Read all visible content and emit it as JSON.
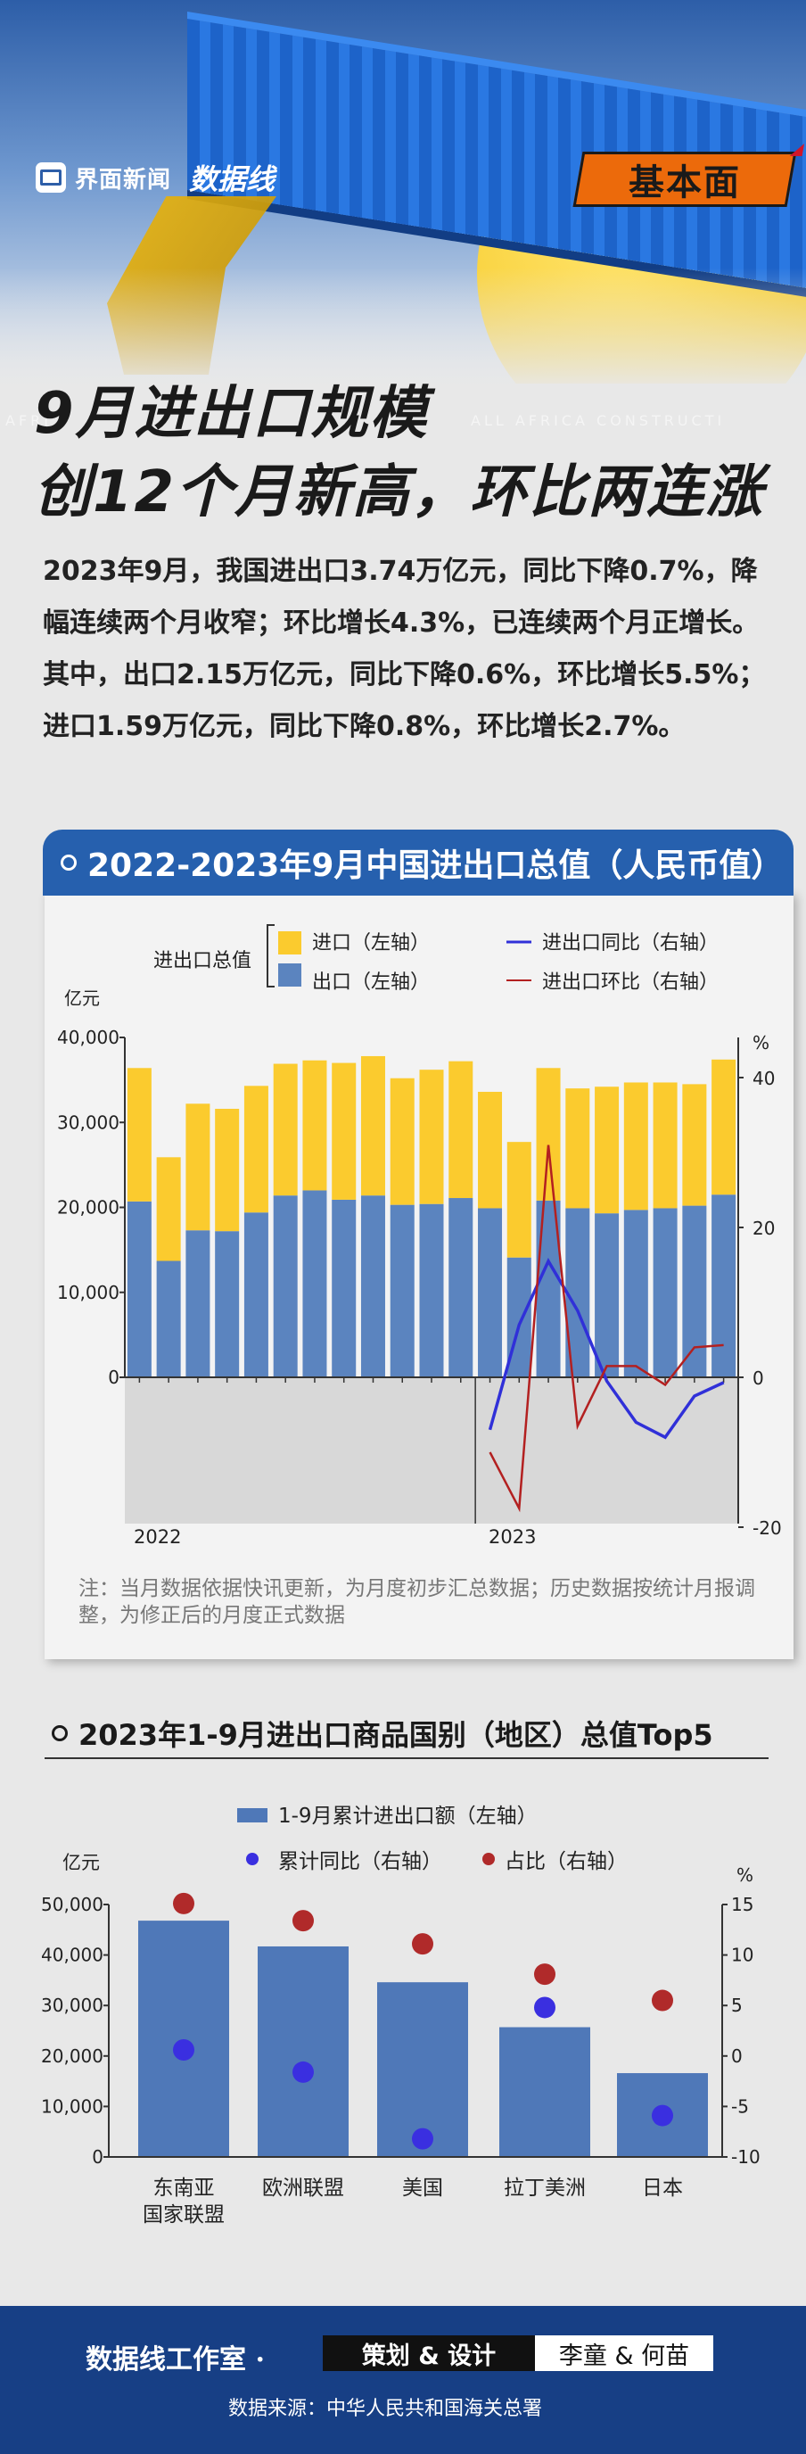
{
  "header": {
    "brand_cn": "界面新闻",
    "brand_logo": "数据线",
    "badge": "基本面",
    "watermark_left": "AFRI",
    "watermark_right": "ALL AFRICA CONSTRUCTI",
    "colors": {
      "sky": "#2d5ea8",
      "sun": "#f4c51b",
      "badge": "#ec6a0b"
    }
  },
  "title": {
    "line1": "9月进出口规模",
    "line2": "创12个月新高，环比两连涨"
  },
  "lead": "2023年9月，我国进出口3.74万亿元，同比下降0.7%，降幅连续两个月收窄；环比增长4.3%，已连续两个月正增长。其中，出口2.15万亿元，同比下降0.6%，环比增长5.5%；进口1.59万亿元，同比下降0.8%，环比增长2.7%。",
  "section1": {
    "title": "2022-2023年9月中国进出口总值（人民币值）",
    "note": "注：当月数据依据快讯更新，为月度初步汇总数据；历史数据按统计月报调整，为修正后的月度正式数据"
  },
  "section2": {
    "title": "2023年1-9月进出口商品国别（地区）总值Top5"
  },
  "footer": {
    "studio": "数据线工作室 ·",
    "plan": "策划 & 设计",
    "names": "李童 & 何苗",
    "source": "数据来源：中华人民共和国海关总署"
  },
  "chart_data": [
    {
      "type": "bar",
      "stacked": true,
      "legend": {
        "group_label": "进出口总值",
        "import": "进口（左轴）",
        "export": "出口（左轴）",
        "yoy": "进出口同比（右轴）",
        "mom": "进出口环比（右轴）"
      },
      "ylabel": "亿元",
      "y2label": "%",
      "ylim": [
        -18000,
        40000
      ],
      "y2lim": [
        -20,
        40
      ],
      "yticks": [
        "40,000",
        "30,000",
        "20,000",
        "10,000",
        "0"
      ],
      "y2ticks": [
        "40",
        "20",
        "0",
        "-20"
      ],
      "xlabels": [
        "2022",
        "2023"
      ],
      "months": [
        "2022-01",
        "2022-02",
        "2022-03",
        "2022-04",
        "2022-05",
        "2022-06",
        "2022-07",
        "2022-08",
        "2022-09",
        "2022-10",
        "2022-11",
        "2022-12",
        "2023-01",
        "2023-02",
        "2023-03",
        "2023-04",
        "2023-05",
        "2023-06",
        "2023-07",
        "2023-08",
        "2023-09"
      ],
      "series": [
        {
          "name": "出口（左轴）",
          "color": "#5b84bf",
          "values": [
            20700,
            13700,
            17300,
            17200,
            19400,
            21400,
            22000,
            20900,
            21400,
            20300,
            20400,
            21100,
            19900,
            14100,
            20800,
            19900,
            19300,
            19700,
            19900,
            20200,
            21500
          ]
        },
        {
          "name": "进口（左轴）",
          "color": "#fbcb2e",
          "values": [
            15700,
            12200,
            14900,
            14400,
            14900,
            15500,
            15300,
            16100,
            16400,
            14900,
            15800,
            16100,
            13700,
            13600,
            15600,
            14100,
            14900,
            15000,
            14800,
            14300,
            15900
          ]
        },
        {
          "name": "进出口同比（右轴）",
          "color": "#3030d8",
          "axis": "right",
          "values": [
            null,
            null,
            null,
            null,
            null,
            null,
            null,
            null,
            null,
            null,
            null,
            null,
            -7,
            7,
            15.5,
            8.9,
            -0.5,
            -6,
            -8,
            -2.5,
            -0.7
          ]
        },
        {
          "name": "进出口环比（右轴）",
          "color": "#b32020",
          "axis": "right",
          "values": [
            null,
            null,
            null,
            null,
            null,
            null,
            null,
            null,
            null,
            null,
            null,
            null,
            -10,
            -17.5,
            31,
            -6.5,
            1.5,
            1.5,
            -1,
            4,
            4.3
          ]
        }
      ]
    },
    {
      "type": "bar",
      "legend": {
        "bar": "1-9月累计进出口额（左轴）",
        "yoy": "累计同比（右轴）",
        "share": "占比（右轴）"
      },
      "ylabel": "亿元",
      "y2label": "%",
      "ylim": [
        0,
        50000
      ],
      "y2lim": [
        -10,
        15
      ],
      "yticks": [
        "50,000",
        "40,000",
        "30,000",
        "20,000",
        "10,000",
        "0"
      ],
      "y2ticks": [
        "15",
        "10",
        "5",
        "0",
        "-5",
        "-10"
      ],
      "categories": [
        "东南亚国家联盟",
        "欧洲联盟",
        "美国",
        "拉丁美洲",
        "日本"
      ],
      "category_lines": [
        [
          "东南亚",
          "国家联盟"
        ],
        [
          "欧洲联盟"
        ],
        [
          "美国"
        ],
        [
          "拉丁美洲"
        ],
        [
          "日本"
        ]
      ],
      "series": [
        {
          "name": "1-9月累计进出口额（左轴）",
          "color": "#4f78b8",
          "values": [
            46800,
            41700,
            34600,
            25700,
            16600
          ]
        },
        {
          "name": "累计同比（右轴）",
          "color": "#3a2fe0",
          "axis": "right",
          "values": [
            0.6,
            -1.6,
            -8.2,
            4.8,
            -5.9
          ]
        },
        {
          "name": "占比（右轴）",
          "color": "#b02a2a",
          "axis": "right",
          "values": [
            15.1,
            13.4,
            11.1,
            8.1,
            5.5
          ]
        }
      ]
    }
  ]
}
